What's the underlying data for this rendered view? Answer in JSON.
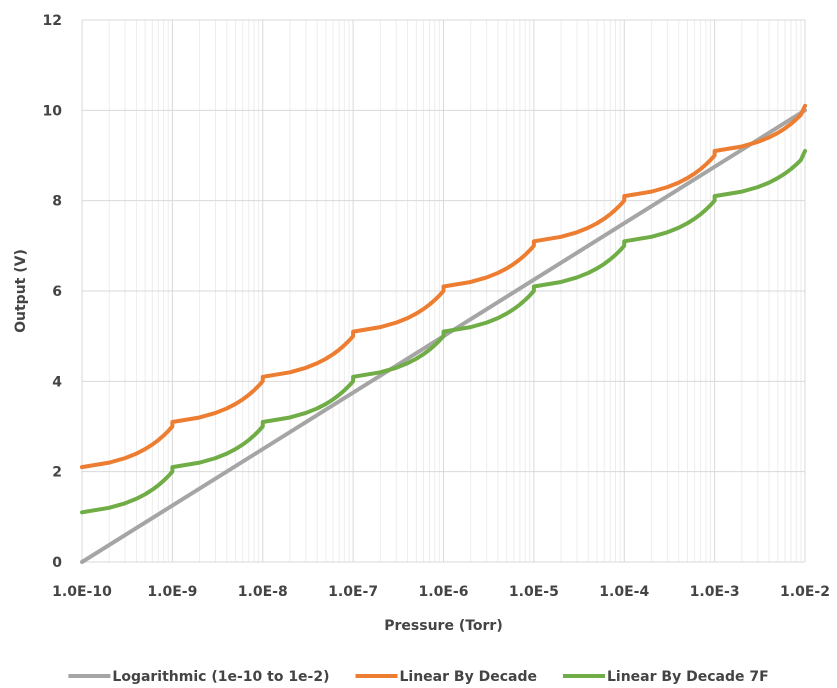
{
  "chart_data": {
    "type": "line",
    "title": "",
    "xlabel": "Pressure (Torr)",
    "ylabel": "Output (V)",
    "x_scale": "log",
    "xlim": [
      1e-10,
      0.01
    ],
    "ylim": [
      0,
      12
    ],
    "grid": true,
    "legend_position": "bottom",
    "x_ticks": [
      {
        "value": 1e-10,
        "label": "1.0E-10"
      },
      {
        "value": 1e-09,
        "label": "1.0E-9"
      },
      {
        "value": 1e-08,
        "label": "1.0E-8"
      },
      {
        "value": 1e-07,
        "label": "1.0E-7"
      },
      {
        "value": 1e-06,
        "label": "1.0E-6"
      },
      {
        "value": 1e-05,
        "label": "1.0E-5"
      },
      {
        "value": 0.0001,
        "label": "1.0E-4"
      },
      {
        "value": 0.001,
        "label": "1.0E-3"
      },
      {
        "value": 0.01,
        "label": "1.0E-2"
      }
    ],
    "y_ticks": [
      {
        "value": 0,
        "label": "0"
      },
      {
        "value": 2,
        "label": "2"
      },
      {
        "value": 4,
        "label": "4"
      },
      {
        "value": 6,
        "label": "6"
      },
      {
        "value": 8,
        "label": "8"
      },
      {
        "value": 10,
        "label": "10"
      },
      {
        "value": 12,
        "label": "12"
      }
    ],
    "series": [
      {
        "name": "Logarithmic (1e-10 to 1e-2)",
        "color": "#a5a5a5",
        "points": [
          [
            1e-10,
            0
          ],
          [
            0.01,
            10
          ]
        ]
      },
      {
        "name": "Linear By Decade",
        "color": "#ed7d31",
        "points": [
          [
            1e-10,
            2.1
          ],
          [
            2e-10,
            2.2
          ],
          [
            3e-10,
            2.3
          ],
          [
            4e-10,
            2.4
          ],
          [
            5e-10,
            2.5
          ],
          [
            6e-10,
            2.6
          ],
          [
            7e-10,
            2.7
          ],
          [
            8e-10,
            2.8
          ],
          [
            9e-10,
            2.9
          ],
          [
            9.99e-10,
            3.0
          ],
          [
            1e-09,
            3.1
          ],
          [
            2e-09,
            3.2
          ],
          [
            3e-09,
            3.3
          ],
          [
            4e-09,
            3.4
          ],
          [
            5e-09,
            3.5
          ],
          [
            6e-09,
            3.6
          ],
          [
            7e-09,
            3.7
          ],
          [
            8e-09,
            3.8
          ],
          [
            9e-09,
            3.9
          ],
          [
            9.99e-09,
            4.0
          ],
          [
            1e-08,
            4.1
          ],
          [
            2e-08,
            4.2
          ],
          [
            3e-08,
            4.3
          ],
          [
            4e-08,
            4.4
          ],
          [
            5e-08,
            4.5
          ],
          [
            6e-08,
            4.6
          ],
          [
            7e-08,
            4.7
          ],
          [
            8e-08,
            4.8
          ],
          [
            9e-08,
            4.9
          ],
          [
            9.99e-08,
            5.0
          ],
          [
            1e-07,
            5.1
          ],
          [
            2e-07,
            5.2
          ],
          [
            3e-07,
            5.3
          ],
          [
            4e-07,
            5.4
          ],
          [
            5e-07,
            5.5
          ],
          [
            6e-07,
            5.6
          ],
          [
            7e-07,
            5.7
          ],
          [
            8e-07,
            5.8
          ],
          [
            9e-07,
            5.9
          ],
          [
            9.99e-07,
            6.0
          ],
          [
            1e-06,
            6.1
          ],
          [
            2e-06,
            6.2
          ],
          [
            3e-06,
            6.3
          ],
          [
            4e-06,
            6.4
          ],
          [
            5e-06,
            6.5
          ],
          [
            6e-06,
            6.6
          ],
          [
            7e-06,
            6.7
          ],
          [
            8e-06,
            6.8
          ],
          [
            9e-06,
            6.9
          ],
          [
            9.99e-06,
            7.0
          ],
          [
            1e-05,
            7.1
          ],
          [
            2e-05,
            7.2
          ],
          [
            3e-05,
            7.3
          ],
          [
            4e-05,
            7.4
          ],
          [
            5e-05,
            7.5
          ],
          [
            6e-05,
            7.6
          ],
          [
            7e-05,
            7.7
          ],
          [
            8e-05,
            7.8
          ],
          [
            9e-05,
            7.9
          ],
          [
            9.99e-05,
            8.0
          ],
          [
            0.0001,
            8.1
          ],
          [
            0.0002,
            8.2
          ],
          [
            0.0003,
            8.3
          ],
          [
            0.0004,
            8.4
          ],
          [
            0.0005,
            8.5
          ],
          [
            0.0006,
            8.6
          ],
          [
            0.0007,
            8.7
          ],
          [
            0.0008,
            8.8
          ],
          [
            0.0009,
            8.9
          ],
          [
            0.000999,
            9.0
          ],
          [
            0.001,
            9.1
          ],
          [
            0.002,
            9.2
          ],
          [
            0.003,
            9.3
          ],
          [
            0.004,
            9.4
          ],
          [
            0.005,
            9.5
          ],
          [
            0.006,
            9.6
          ],
          [
            0.007,
            9.7
          ],
          [
            0.008,
            9.8
          ],
          [
            0.009,
            9.9
          ],
          [
            0.01,
            10.1
          ]
        ]
      },
      {
        "name": "Linear By Decade 7F",
        "color": "#70ad47",
        "points": [
          [
            1e-10,
            1.1
          ],
          [
            2e-10,
            1.2
          ],
          [
            3e-10,
            1.3
          ],
          [
            4e-10,
            1.4
          ],
          [
            5e-10,
            1.5
          ],
          [
            6e-10,
            1.6
          ],
          [
            7e-10,
            1.7
          ],
          [
            8e-10,
            1.8
          ],
          [
            9e-10,
            1.9
          ],
          [
            9.99e-10,
            2.0
          ],
          [
            1e-09,
            2.1
          ],
          [
            2e-09,
            2.2
          ],
          [
            3e-09,
            2.3
          ],
          [
            4e-09,
            2.4
          ],
          [
            5e-09,
            2.5
          ],
          [
            6e-09,
            2.6
          ],
          [
            7e-09,
            2.7
          ],
          [
            8e-09,
            2.8
          ],
          [
            9e-09,
            2.9
          ],
          [
            9.99e-09,
            3.0
          ],
          [
            1e-08,
            3.1
          ],
          [
            2e-08,
            3.2
          ],
          [
            3e-08,
            3.3
          ],
          [
            4e-08,
            3.4
          ],
          [
            5e-08,
            3.5
          ],
          [
            6e-08,
            3.6
          ],
          [
            7e-08,
            3.7
          ],
          [
            8e-08,
            3.8
          ],
          [
            9e-08,
            3.9
          ],
          [
            9.99e-08,
            4.0
          ],
          [
            1e-07,
            4.1
          ],
          [
            2e-07,
            4.2
          ],
          [
            3e-07,
            4.3
          ],
          [
            4e-07,
            4.4
          ],
          [
            5e-07,
            4.5
          ],
          [
            6e-07,
            4.6
          ],
          [
            7e-07,
            4.7
          ],
          [
            8e-07,
            4.8
          ],
          [
            9e-07,
            4.9
          ],
          [
            9.99e-07,
            5.0
          ],
          [
            1e-06,
            5.1
          ],
          [
            2e-06,
            5.2
          ],
          [
            3e-06,
            5.3
          ],
          [
            4e-06,
            5.4
          ],
          [
            5e-06,
            5.5
          ],
          [
            6e-06,
            5.6
          ],
          [
            7e-06,
            5.7
          ],
          [
            8e-06,
            5.8
          ],
          [
            9e-06,
            5.9
          ],
          [
            9.99e-06,
            6.0
          ],
          [
            1e-05,
            6.1
          ],
          [
            2e-05,
            6.2
          ],
          [
            3e-05,
            6.3
          ],
          [
            4e-05,
            6.4
          ],
          [
            5e-05,
            6.5
          ],
          [
            6e-05,
            6.6
          ],
          [
            7e-05,
            6.7
          ],
          [
            8e-05,
            6.8
          ],
          [
            9e-05,
            6.9
          ],
          [
            9.99e-05,
            7.0
          ],
          [
            0.0001,
            7.1
          ],
          [
            0.0002,
            7.2
          ],
          [
            0.0003,
            7.3
          ],
          [
            0.0004,
            7.4
          ],
          [
            0.0005,
            7.5
          ],
          [
            0.0006,
            7.6
          ],
          [
            0.0007,
            7.7
          ],
          [
            0.0008,
            7.8
          ],
          [
            0.0009,
            7.9
          ],
          [
            0.000999,
            8.0
          ],
          [
            0.001,
            8.1
          ],
          [
            0.002,
            8.2
          ],
          [
            0.003,
            8.3
          ],
          [
            0.004,
            8.4
          ],
          [
            0.005,
            8.5
          ],
          [
            0.006,
            8.6
          ],
          [
            0.007,
            8.7
          ],
          [
            0.008,
            8.8
          ],
          [
            0.009,
            8.9
          ],
          [
            0.01,
            9.1
          ]
        ]
      }
    ]
  }
}
